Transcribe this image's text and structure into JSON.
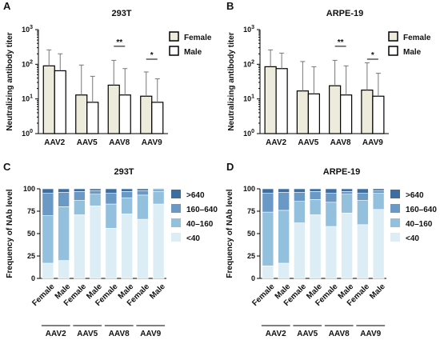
{
  "chart_data": [
    {
      "panel": "A",
      "type": "bar",
      "title": "293T",
      "ylabel": "Neutralizing antibody titer",
      "yscale": "log",
      "ylim": [
        1,
        1000
      ],
      "yticks": [
        1,
        10,
        100,
        1000
      ],
      "ytick_labels": [
        [
          "10",
          "0"
        ],
        [
          "10",
          "1"
        ],
        [
          "10",
          "2"
        ],
        [
          "10",
          "3"
        ]
      ],
      "categories": [
        "AAV2",
        "AAV5",
        "AAV8",
        "AAV9"
      ],
      "series": [
        {
          "name": "Female",
          "values": [
            90,
            13,
            25,
            12
          ],
          "err_upper": [
            260,
            95,
            130,
            60
          ],
          "color": "#ecebdc"
        },
        {
          "name": "Male",
          "values": [
            65,
            8,
            13,
            8
          ],
          "err_upper": [
            200,
            45,
            75,
            38
          ],
          "color": "#ffffff"
        }
      ],
      "significance": [
        {
          "category": "AAV8",
          "label": "**",
          "level": 330
        },
        {
          "category": "AAV9",
          "label": "*",
          "level": 140
        }
      ],
      "legend_position": "top-right"
    },
    {
      "panel": "B",
      "type": "bar",
      "title": "ARPE-19",
      "ylabel": "Neutralizing antibody titer",
      "yscale": "log",
      "ylim": [
        1,
        1000
      ],
      "yticks": [
        1,
        10,
        100,
        1000
      ],
      "ytick_labels": [
        [
          "10",
          "0"
        ],
        [
          "10",
          "1"
        ],
        [
          "10",
          "2"
        ],
        [
          "10",
          "3"
        ]
      ],
      "categories": [
        "AAV2",
        "AAV5",
        "AAV8",
        "AAV9"
      ],
      "series": [
        {
          "name": "Female",
          "values": [
            85,
            17,
            24,
            18
          ],
          "err_upper": [
            260,
            120,
            130,
            110
          ],
          "color": "#ecebdc"
        },
        {
          "name": "Male",
          "values": [
            75,
            14,
            13,
            12
          ],
          "err_upper": [
            210,
            85,
            90,
            55
          ],
          "color": "#ffffff"
        }
      ],
      "significance": [
        {
          "category": "AAV8",
          "label": "**",
          "level": 330
        },
        {
          "category": "AAV9",
          "label": "*",
          "level": 140
        }
      ],
      "legend_position": "top-right"
    },
    {
      "panel": "C",
      "type": "bar",
      "stacked": true,
      "title": "293T",
      "ylabel": "Frequency of NAb level",
      "ylim": [
        0,
        100
      ],
      "yticks": [
        0,
        25,
        50,
        75,
        100
      ],
      "categories": [
        "Female",
        "Male",
        "Female",
        "Male",
        "Female",
        "Male",
        "Female",
        "Male"
      ],
      "groups": [
        "AAV2",
        "AAV5",
        "AAV8",
        "AAV9"
      ],
      "series": [
        {
          "name": "<40",
          "values": [
            17,
            20,
            71,
            81,
            56,
            72,
            66,
            83
          ],
          "color": "#dcedf6"
        },
        {
          "name": "40–160",
          "values": [
            53,
            60,
            16,
            13,
            27,
            18,
            27,
            14
          ],
          "color": "#93c0dc"
        },
        {
          "name": "160–640",
          "values": [
            25,
            16,
            10,
            4,
            12,
            7,
            5,
            2
          ],
          "color": "#6a99c6"
        },
        {
          "name": ">640",
          "values": [
            5,
            4,
            3,
            2,
            5,
            3,
            2,
            1
          ],
          "color": "#3d6e9f"
        }
      ],
      "legend_order": [
        ">640",
        "160–640",
        "40–160",
        "<40"
      ],
      "legend_position": "right"
    },
    {
      "panel": "D",
      "type": "bar",
      "stacked": true,
      "title": "ARPE-19",
      "ylabel": "Frequency of NAb level",
      "ylim": [
        0,
        100
      ],
      "yticks": [
        0,
        25,
        50,
        75,
        100
      ],
      "categories": [
        "Female",
        "Male",
        "Female",
        "Male",
        "Female",
        "Male",
        "Female",
        "Male"
      ],
      "groups": [
        "AAV2",
        "AAV5",
        "AAV8",
        "AAV9"
      ],
      "series": [
        {
          "name": "<40",
          "values": [
            14,
            17,
            62,
            71,
            58,
            73,
            60,
            77
          ],
          "color": "#dcedf6"
        },
        {
          "name": "40–160",
          "values": [
            60,
            59,
            24,
            17,
            27,
            21,
            27,
            18
          ],
          "color": "#93c0dc"
        },
        {
          "name": "160–640",
          "values": [
            21,
            20,
            10,
            9,
            10,
            3,
            8,
            3
          ],
          "color": "#6a99c6"
        },
        {
          "name": ">640",
          "values": [
            5,
            4,
            4,
            3,
            5,
            3,
            5,
            2
          ],
          "color": "#3d6e9f"
        }
      ],
      "legend_order": [
        ">640",
        "160–640",
        "40–160",
        "<40"
      ],
      "legend_position": "right"
    }
  ]
}
